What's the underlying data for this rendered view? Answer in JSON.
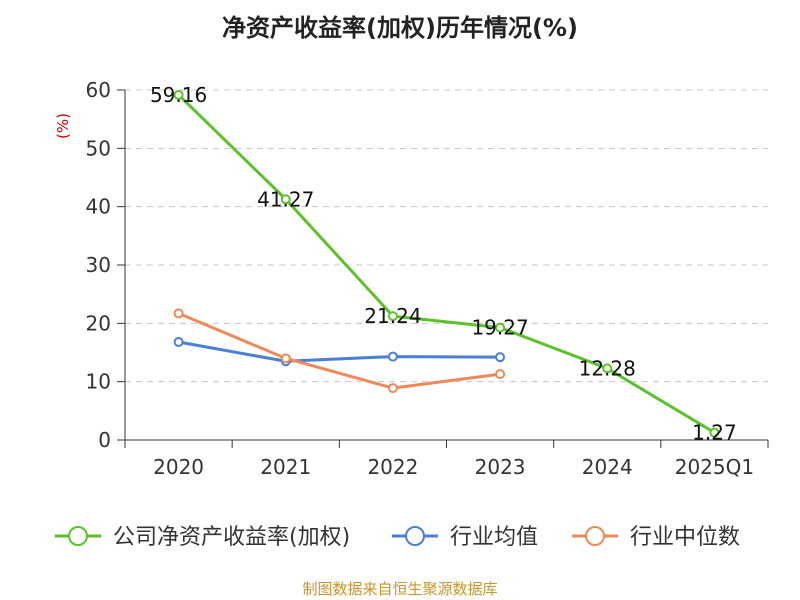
{
  "chart_data": {
    "type": "line",
    "title": "净资产收益率(加权)历年情况(%)",
    "ylabel": "(%)",
    "categories": [
      "2020",
      "2021",
      "2022",
      "2023",
      "2024",
      "2025Q1"
    ],
    "ylim": [
      0,
      60
    ],
    "yticks": [
      0,
      10,
      20,
      30,
      40,
      50,
      60
    ],
    "grid": true,
    "legend_position": "bottom",
    "series": [
      {
        "name": "公司净资产收益率(加权)",
        "color": "#5cc12a",
        "values": [
          59.16,
          41.27,
          21.24,
          19.27,
          12.28,
          1.27
        ],
        "labels": [
          "59.16",
          "41.27",
          "21.24",
          "19.27",
          "12.28",
          "1.27"
        ]
      },
      {
        "name": "行业均值",
        "color": "#4a7fd9",
        "values": [
          16.8,
          13.5,
          14.3,
          14.2,
          null,
          null
        ]
      },
      {
        "name": "行业中位数",
        "color": "#f0895a",
        "values": [
          21.7,
          14.0,
          8.9,
          11.3,
          null,
          null
        ]
      }
    ]
  },
  "source_text": "制图数据来自恒生聚源数据库"
}
